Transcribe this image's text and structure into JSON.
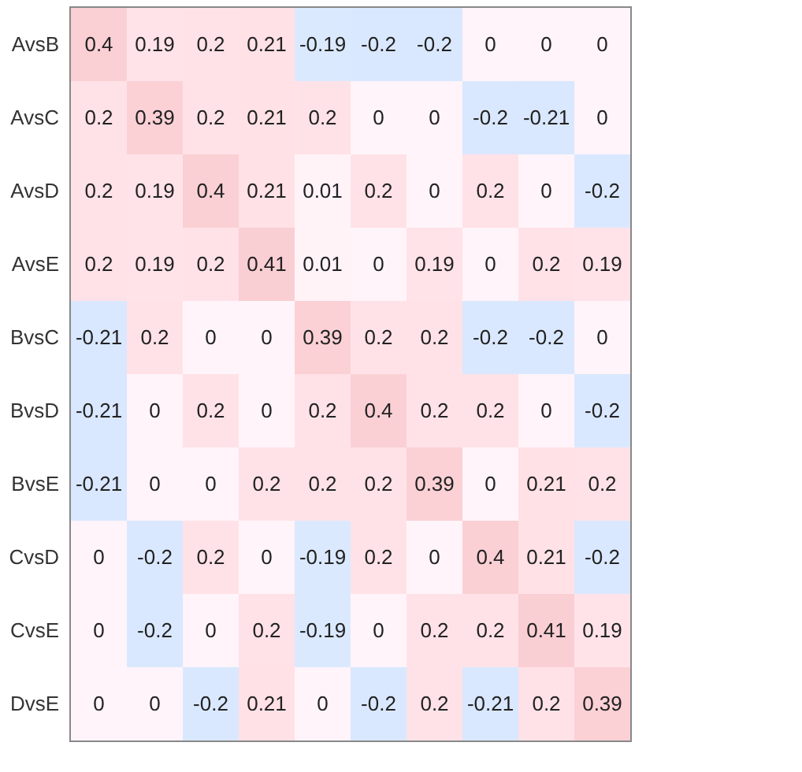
{
  "chart_data": {
    "type": "heatmap",
    "categories": [
      null,
      null,
      null,
      null,
      null,
      null,
      null,
      null,
      null,
      null
    ],
    "y_categories": [
      "AvsB",
      "AvsC",
      "AvsD",
      "AvsE",
      "BvsC",
      "BvsD",
      "BvsE",
      "CvsD",
      "CvsE",
      "DvsE"
    ],
    "cells": [
      [
        0.4,
        0.19,
        0.2,
        0.21,
        -0.19,
        -0.2,
        -0.2,
        0,
        0,
        0
      ],
      [
        0.2,
        0.39,
        0.2,
        0.21,
        0.2,
        0,
        0,
        -0.2,
        -0.21,
        0
      ],
      [
        0.2,
        0.19,
        0.4,
        0.21,
        0.01,
        0.2,
        0,
        0.2,
        0,
        -0.2
      ],
      [
        0.2,
        0.19,
        0.2,
        0.41,
        0.01,
        0,
        0.19,
        0,
        0.2,
        0.19
      ],
      [
        -0.21,
        0.2,
        0,
        0,
        0.39,
        0.2,
        0.2,
        -0.2,
        -0.2,
        0
      ],
      [
        -0.21,
        0,
        0.2,
        0,
        0.2,
        0.4,
        0.2,
        0.2,
        0,
        -0.2
      ],
      [
        -0.21,
        0,
        0,
        0.2,
        0.2,
        0.2,
        0.39,
        0,
        0.21,
        0.2
      ],
      [
        0,
        -0.2,
        0.2,
        0,
        -0.19,
        0.2,
        0,
        0.4,
        0.21,
        -0.2
      ],
      [
        0,
        -0.2,
        0,
        0.2,
        -0.19,
        0,
        0.2,
        0.2,
        0.41,
        0.19
      ],
      [
        0,
        0,
        -0.2,
        0.21,
        0,
        -0.2,
        0.2,
        -0.21,
        0.2,
        0.39
      ]
    ],
    "data_labels": true,
    "grid": false,
    "tick_labels": "y"
  }
}
